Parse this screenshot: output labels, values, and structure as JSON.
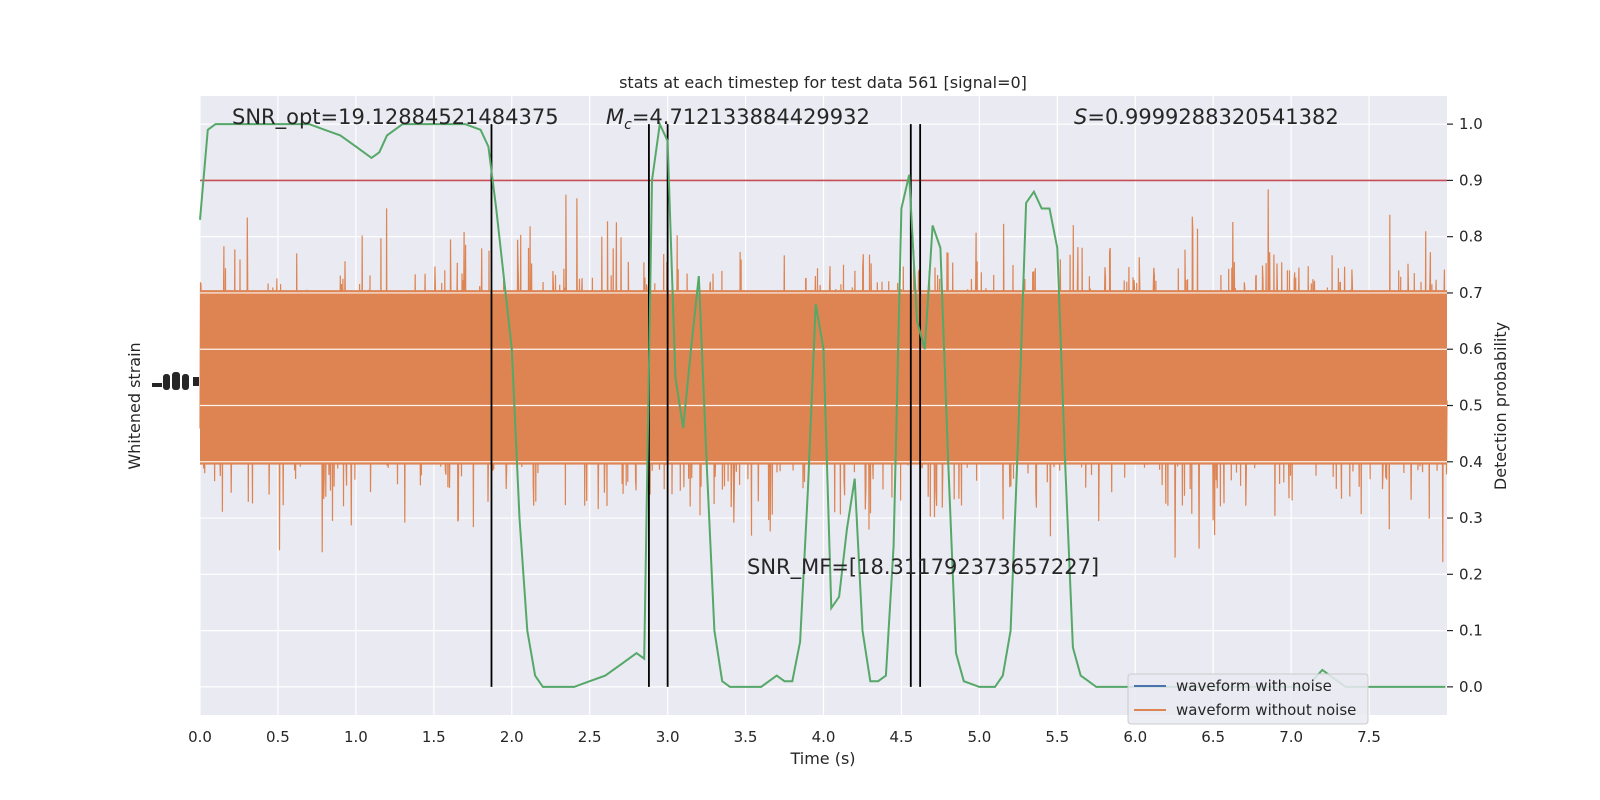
{
  "chart_data": {
    "type": "line",
    "title": "stats at each timestep for test data 561 [signal=0]",
    "xlabel": "Time (s)",
    "ylabel_left": "Whitened strain",
    "ylabel_right": "Detection probability",
    "xlim": [
      0,
      8
    ],
    "ylim_right": [
      -0.05,
      1.05
    ],
    "x_ticks": [
      "0.0",
      "0.5",
      "1.0",
      "1.5",
      "2.0",
      "2.5",
      "3.0",
      "3.5",
      "4.0",
      "4.5",
      "5.0",
      "5.5",
      "6.0",
      "6.5",
      "7.0",
      "7.5"
    ],
    "y_ticks_right": [
      "0.0",
      "0.1",
      "0.2",
      "0.3",
      "0.4",
      "0.5",
      "0.6",
      "0.7",
      "0.8",
      "0.9",
      "1.0"
    ],
    "threshold": 0.9,
    "vertical_lines_x": [
      1.87,
      2.88,
      3.0,
      4.56,
      4.62
    ],
    "annotations": {
      "snr_opt": "SNR_opt=19.12884521484375",
      "mc_symbol": "M",
      "mc_subscript": "c",
      "mc_value": "=4.712133884429932",
      "s_symbol": "S",
      "s_value": "=0.9999288320541382",
      "snr_mf": "SNR_MF=[18.311792373657227]"
    },
    "legend": {
      "position": "lower right",
      "entries": [
        "waveform with noise",
        "waveform without noise"
      ]
    },
    "series": [
      {
        "name": "Detection probability",
        "x": [
          0.0,
          0.05,
          0.1,
          0.2,
          0.3,
          0.4,
          0.5,
          0.6,
          0.7,
          0.8,
          0.9,
          1.0,
          1.1,
          1.15,
          1.2,
          1.3,
          1.4,
          1.5,
          1.6,
          1.7,
          1.8,
          1.85,
          1.9,
          2.0,
          2.05,
          2.1,
          2.15,
          2.2,
          2.3,
          2.4,
          2.5,
          2.6,
          2.7,
          2.8,
          2.85,
          2.9,
          2.95,
          3.0,
          3.05,
          3.1,
          3.15,
          3.2,
          3.25,
          3.3,
          3.35,
          3.4,
          3.5,
          3.6,
          3.7,
          3.75,
          3.8,
          3.85,
          3.9,
          3.95,
          4.0,
          4.05,
          4.1,
          4.15,
          4.2,
          4.25,
          4.3,
          4.35,
          4.4,
          4.45,
          4.5,
          4.55,
          4.6,
          4.65,
          4.7,
          4.75,
          4.8,
          4.85,
          4.9,
          5.0,
          5.05,
          5.1,
          5.15,
          5.2,
          5.25,
          5.3,
          5.35,
          5.4,
          5.45,
          5.5,
          5.55,
          5.6,
          5.65,
          5.7,
          5.75,
          5.8,
          5.85,
          5.9,
          6.0,
          6.05,
          6.1,
          6.2,
          6.3,
          6.4,
          6.5,
          6.6,
          6.7,
          6.8,
          6.9,
          7.0,
          7.1,
          7.2,
          7.3,
          7.35,
          7.4,
          7.45,
          7.5,
          7.6,
          7.7,
          7.8,
          7.9,
          7.99
        ],
        "values": [
          0.83,
          0.99,
          1.0,
          1.0,
          1.0,
          1.0,
          1.0,
          1.0,
          1.0,
          0.99,
          0.98,
          0.96,
          0.94,
          0.95,
          0.98,
          1.0,
          1.0,
          1.0,
          1.0,
          1.0,
          0.99,
          0.96,
          0.85,
          0.6,
          0.3,
          0.1,
          0.02,
          0.0,
          0.0,
          0.0,
          0.01,
          0.02,
          0.04,
          0.06,
          0.05,
          0.9,
          1.0,
          0.97,
          0.55,
          0.46,
          0.6,
          0.73,
          0.4,
          0.1,
          0.01,
          0.0,
          0.0,
          0.0,
          0.02,
          0.01,
          0.01,
          0.08,
          0.35,
          0.68,
          0.6,
          0.14,
          0.16,
          0.28,
          0.37,
          0.1,
          0.01,
          0.01,
          0.02,
          0.25,
          0.85,
          0.91,
          0.65,
          0.6,
          0.82,
          0.78,
          0.4,
          0.06,
          0.01,
          0.0,
          0.0,
          0.0,
          0.02,
          0.1,
          0.45,
          0.86,
          0.88,
          0.85,
          0.85,
          0.78,
          0.4,
          0.07,
          0.02,
          0.01,
          0.0,
          0.0,
          0.0,
          0.0,
          0.0,
          0.0,
          0.0,
          0.0,
          0.0,
          0.0,
          0.0,
          0.0,
          0.0,
          0.0,
          0.0,
          0.0,
          0.0,
          0.03,
          0.01,
          0.0,
          0.0,
          0.0,
          0.0,
          0.0,
          0.0,
          0.0,
          0.0,
          0.0
        ],
        "color": "#55a868"
      },
      {
        "name": "waveform without noise",
        "color": "#dd8452",
        "description_values": "dense whitened strain noise band"
      },
      {
        "name": "waveform with noise",
        "color": "#4c72b0"
      }
    ],
    "grid": true,
    "colors": {
      "plot_background": "#eaeaf2",
      "grid": "#ffffff",
      "threshold_line": "#c44e52",
      "vertical_lines": "#000000"
    }
  }
}
